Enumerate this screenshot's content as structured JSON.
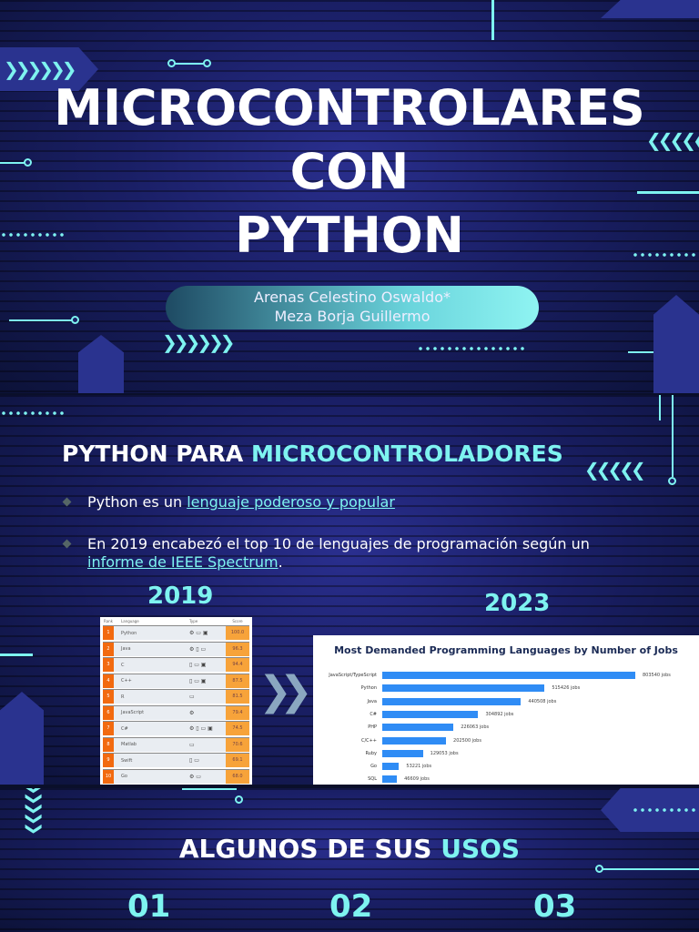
{
  "slide1": {
    "title_line1": "MICROCONTROLARES",
    "title_line2": "CON",
    "title_line3": "PYTHON",
    "authors": [
      "Arenas Celestino Oswaldo*",
      "Meza Borja Guillermo"
    ]
  },
  "slide2": {
    "heading_white": "PYTHON PARA",
    "heading_cyan": "MICROCONTROLADORES",
    "bullets": [
      {
        "pre": "Python es un ",
        "link": "lenguaje poderoso y popular",
        "post": ""
      },
      {
        "pre": "En 2019 encabezó el top 10 de lenguajes de programación según un ",
        "link": "informe de IEEE Spectrum",
        "post": "."
      }
    ],
    "year_left": "2019",
    "year_right": "2023",
    "table_2019": {
      "headers": [
        "Rank",
        "Language",
        "Type",
        "Score"
      ],
      "rows": [
        {
          "rank": "1",
          "lang": "Python",
          "type": "⚙ ▭ ▣",
          "score": "100.0"
        },
        {
          "rank": "2",
          "lang": "Java",
          "type": "⚙ ▯ ▭",
          "score": "96.3"
        },
        {
          "rank": "3",
          "lang": "C",
          "type": "▯ ▭ ▣",
          "score": "94.4"
        },
        {
          "rank": "4",
          "lang": "C++",
          "type": "▯ ▭ ▣",
          "score": "87.5"
        },
        {
          "rank": "5",
          "lang": "R",
          "type": "▭",
          "score": "81.5"
        },
        {
          "rank": "6",
          "lang": "JavaScript",
          "type": "⚙",
          "score": "79.4"
        },
        {
          "rank": "7",
          "lang": "C#",
          "type": "⚙ ▯ ▭ ▣",
          "score": "74.5"
        },
        {
          "rank": "8",
          "lang": "Matlab",
          "type": "▭",
          "score": "70.6"
        },
        {
          "rank": "9",
          "lang": "Swift",
          "type": "▯ ▭",
          "score": "69.1"
        },
        {
          "rank": "10",
          "lang": "Go",
          "type": "⚙ ▭",
          "score": "68.0"
        }
      ]
    }
  },
  "chart_data": {
    "type": "bar",
    "orientation": "horizontal",
    "title": "Most Demanded Programming Languages by Number of Jobs",
    "categories": [
      "JavaScript/TypeScript",
      "Python",
      "Java",
      "C#",
      "PHP",
      "C/C++",
      "Ruby",
      "Go",
      "SQL"
    ],
    "values": [
      803540,
      515426,
      440508,
      304892,
      226063,
      202500,
      129053,
      53221,
      46609
    ],
    "value_labels": [
      "803540 jobs",
      "515426 jobs",
      "440508 jobs",
      "304892 jobs",
      "226063 jobs",
      "202500 jobs",
      "129053 jobs",
      "53221 jobs",
      "46609 jobs"
    ],
    "color": "#2f8cf5"
  },
  "slide3": {
    "heading_white": "ALGUNOS DE SUS",
    "heading_cyan": "USOS",
    "numbers": [
      "01",
      "02",
      "03"
    ]
  },
  "colors": {
    "accent": "#7ef3f0",
    "background": "#1a1f66"
  }
}
